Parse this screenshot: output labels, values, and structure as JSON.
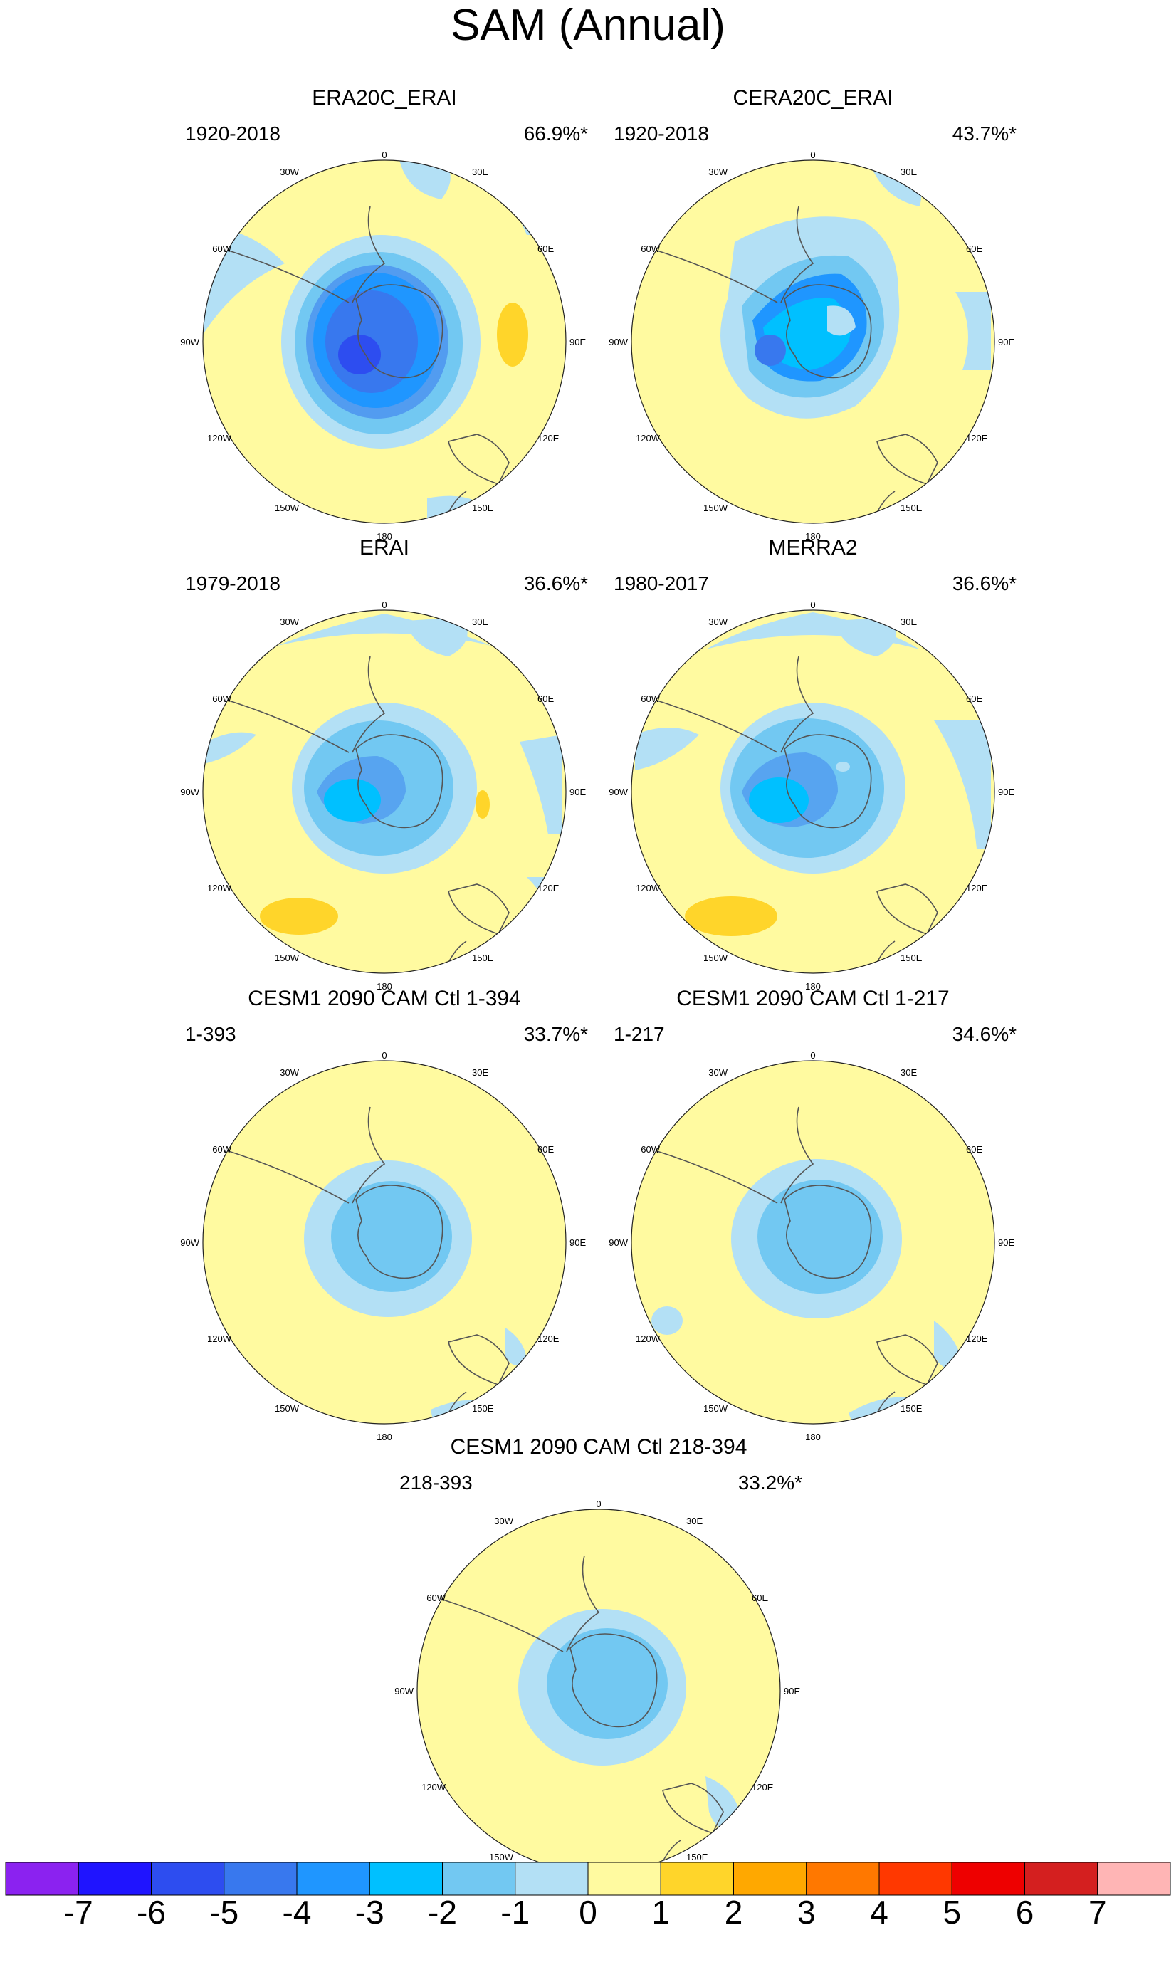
{
  "figure_title": "SAM (Annual)",
  "panels": [
    {
      "title": "ERA20C_ERAI",
      "period": "1920-2018",
      "explained_variance": "66.9%*"
    },
    {
      "title": "CERA20C_ERAI",
      "period": "1920-2018",
      "explained_variance": "43.7%*"
    },
    {
      "title": "ERAI",
      "period": "1979-2018",
      "explained_variance": "36.6%*"
    },
    {
      "title": "MERRA2",
      "period": "1980-2017",
      "explained_variance": "36.6%*"
    },
    {
      "title": "CESM1 2090 CAM Ctl 1-394",
      "period": "1-393",
      "explained_variance": "33.7%*"
    },
    {
      "title": "CESM1 2090 CAM Ctl 1-217",
      "period": "1-217",
      "explained_variance": "34.6%*"
    },
    {
      "title": "CESM1 2090 CAM Ctl 218-394",
      "period": "218-393",
      "explained_variance": "33.2%*"
    }
  ],
  "longitude_labels": [
    "0",
    "30E",
    "60E",
    "90E",
    "120E",
    "150E",
    "180",
    "150W",
    "120W",
    "90W",
    "60W",
    "30W"
  ],
  "colorbar": {
    "colors": [
      "#8b22f0",
      "#1f14ff",
      "#2d4df0",
      "#3878ee",
      "#1f96ff",
      "#00c0ff",
      "#72c8f2",
      "#b3e0f5",
      "#fffaa0",
      "#ffd52a",
      "#ffa800",
      "#ff7800",
      "#ff3800",
      "#ee0000",
      "#d41f1f",
      "#ffb5b5"
    ],
    "labels": [
      "-7",
      "-6",
      "-5",
      "-4",
      "-3",
      "-2",
      "-1",
      "0",
      "1",
      "2",
      "3",
      "4",
      "5",
      "6",
      "7"
    ]
  },
  "chart_data": {
    "type": "polar-map",
    "title": "SAM (Annual)",
    "projection": "south-polar stereographic",
    "colorbar_levels": [
      -7,
      -6,
      -5,
      -4,
      -3,
      -2,
      -1,
      0,
      1,
      2,
      3,
      4,
      5,
      6,
      7
    ],
    "panels": [
      {
        "name": "ERA20C_ERAI",
        "period": "1920-2018",
        "explained_variance_percent": 66.9,
        "min_level_over_pole": -5,
        "positive_anomaly_regions": [
          "south Indian Ocean near 90E"
        ]
      },
      {
        "name": "CERA20C_ERAI",
        "period": "1920-2018",
        "explained_variance_percent": 43.7,
        "min_level_over_pole": -5,
        "positive_anomaly_regions": []
      },
      {
        "name": "ERAI",
        "period": "1979-2018",
        "explained_variance_percent": 36.6,
        "min_level_over_pole": -3,
        "positive_anomaly_regions": [
          "south Pacific near 150W",
          "south Indian Ocean near 90E"
        ]
      },
      {
        "name": "MERRA2",
        "period": "1980-2017",
        "explained_variance_percent": 36.6,
        "min_level_over_pole": -3,
        "positive_anomaly_regions": [
          "south Pacific near 150W"
        ]
      },
      {
        "name": "CESM1 2090 CAM Ctl 1-394",
        "period": "1-393",
        "explained_variance_percent": 33.7,
        "min_level_over_pole": -2,
        "positive_anomaly_regions": []
      },
      {
        "name": "CESM1 2090 CAM Ctl 1-217",
        "period": "1-217",
        "explained_variance_percent": 34.6,
        "min_level_over_pole": -2,
        "positive_anomaly_regions": []
      },
      {
        "name": "CESM1 2090 CAM Ctl 218-394",
        "period": "218-393",
        "explained_variance_percent": 33.2,
        "min_level_over_pole": -2,
        "positive_anomaly_regions": []
      }
    ]
  }
}
